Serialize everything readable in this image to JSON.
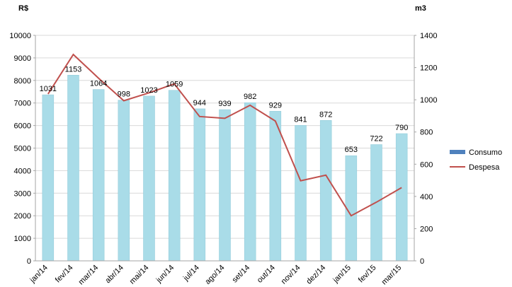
{
  "chart_data": {
    "type": "bar",
    "left_axis_unit": "R$",
    "right_axis_unit": "m3",
    "categories": [
      "jan/14",
      "fev/14",
      "mar/14",
      "abr/14",
      "mai/14",
      "jun/14",
      "jul/14",
      "ago/14",
      "set/14",
      "out/14",
      "nov/14",
      "dez/14",
      "jan/15",
      "fev/15",
      "mar/15"
    ],
    "y_left_range": [
      0,
      10000
    ],
    "y_left_ticks": [
      0,
      1000,
      2000,
      3000,
      4000,
      5000,
      6000,
      7000,
      8000,
      9000,
      10000
    ],
    "y_right_range": [
      0,
      1400
    ],
    "y_right_ticks": [
      0,
      200,
      400,
      600,
      800,
      1000,
      1200,
      1400
    ],
    "grid": true,
    "legend_position": "right",
    "series": [
      {
        "name": "Consumo",
        "type": "bar",
        "axis": "right",
        "color": "#a9dce8",
        "legend_color": "#4f81bd",
        "values": [
          1031,
          1153,
          1064,
          998,
          1023,
          1059,
          944,
          939,
          982,
          929,
          841,
          872,
          653,
          722,
          790
        ],
        "data_labels": [
          "1031",
          "1153",
          "1064",
          "998",
          "1023",
          "1059",
          "944",
          "939",
          "982",
          "929",
          "841",
          "872",
          "653",
          "722",
          "790"
        ]
      },
      {
        "name": "Despesa",
        "type": "line",
        "axis": "left",
        "color": "#c0504d",
        "values": [
          7400,
          9150,
          8100,
          7100,
          7450,
          7850,
          6400,
          6320,
          6900,
          6200,
          3550,
          3800,
          2000,
          2600,
          3250
        ]
      }
    ]
  }
}
